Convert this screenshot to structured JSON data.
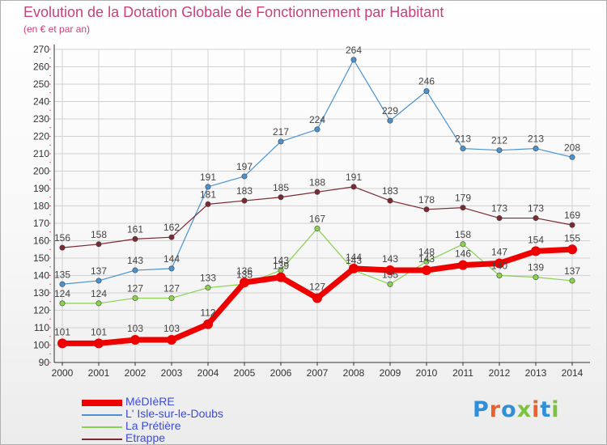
{
  "title": "Evolution de la Dotation Globale de Fonctionnement par Habitant",
  "subtitle": "(en € et par an)",
  "brand": {
    "text": "Proxiti",
    "letter_colors": [
      "#2f8fd8",
      "#e8622a",
      "#2f8fd8",
      "#7cc243",
      "#e8622a",
      "#2f8fd8",
      "#7cc243"
    ]
  },
  "chart_data": {
    "type": "line",
    "title": "Evolution de la Dotation Globale de Fonctionnement par Habitant",
    "subtitle": "(en € et par an)",
    "x": [
      "2000",
      "2001",
      "2002",
      "2003",
      "2004",
      "2005",
      "2006",
      "2007",
      "2008",
      "2009",
      "2010",
      "2011",
      "2012",
      "2013",
      "2014"
    ],
    "ylim": [
      90,
      270
    ],
    "yticks": [
      90,
      100,
      110,
      120,
      130,
      140,
      150,
      160,
      170,
      180,
      190,
      200,
      210,
      220,
      230,
      240,
      250,
      260,
      270
    ],
    "grid": true,
    "legend_position": "bottom-left",
    "series": [
      {
        "name": "L' Isle-sur-le-Doubs",
        "color": "#4a92cf",
        "values": [
          135,
          137,
          143,
          144,
          191,
          197,
          217,
          224,
          264,
          229,
          246,
          213,
          212,
          213,
          208
        ]
      },
      {
        "name": "Etrappe",
        "color": "#7a2a30",
        "values": [
          156,
          158,
          161,
          162,
          181,
          183,
          185,
          188,
          191,
          183,
          178,
          179,
          173,
          173,
          169
        ]
      },
      {
        "name": "La Prétière",
        "color": "#8ad14f",
        "values": [
          124,
          124,
          127,
          127,
          133,
          135,
          143,
          167,
          143,
          135,
          148,
          158,
          140,
          139,
          137
        ]
      },
      {
        "name": "MéDIèRE",
        "color": "#ee0000",
        "values": [
          101,
          101,
          103,
          103,
          112,
          136,
          139,
          127,
          144,
          143,
          143,
          146,
          147,
          154,
          155
        ]
      }
    ]
  },
  "legend": [
    {
      "label": "MéDIèRE",
      "color": "#ee0000",
      "thick": true
    },
    {
      "label": "L' Isle-sur-le-Doubs",
      "color": "#4a92cf",
      "thick": false
    },
    {
      "label": "La Prétière",
      "color": "#8ad14f",
      "thick": false
    },
    {
      "label": "Etrappe",
      "color": "#7a2a30",
      "thick": false
    }
  ]
}
